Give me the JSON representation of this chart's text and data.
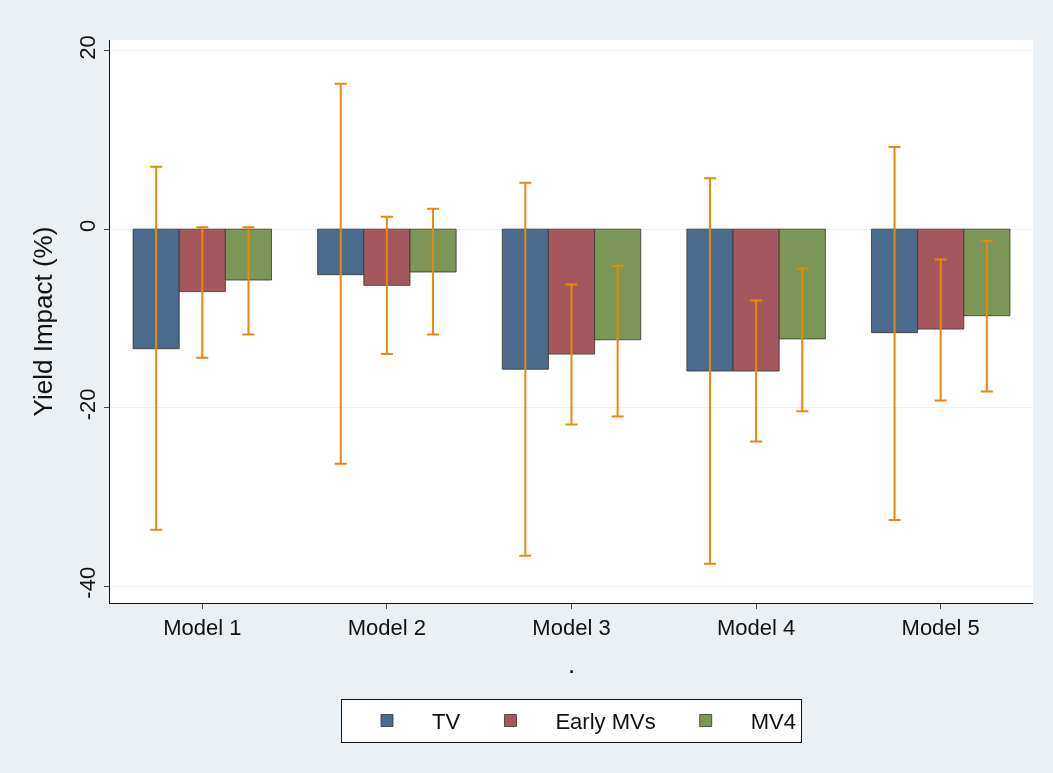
{
  "chart_data": {
    "type": "bar",
    "xlabel": ".",
    "ylabel": "Yield Impact (%)",
    "categories": [
      "Model 1",
      "Model 2",
      "Model 3",
      "Model 4",
      "Model 5"
    ],
    "series": [
      {
        "name": "TV",
        "color": "#4a6b8b",
        "values": [
          -13.4,
          -5.1,
          -15.7,
          -15.9,
          -11.6
        ],
        "errors": [
          [
            -33.7,
            7.0
          ],
          [
            -26.3,
            16.3
          ],
          [
            -36.6,
            5.2
          ],
          [
            -37.5,
            5.7
          ],
          [
            -32.6,
            9.2
          ]
        ]
      },
      {
        "name": "Early MVs",
        "color": "#a5575e",
        "values": [
          -7.0,
          -6.3,
          -14.0,
          -15.9,
          -11.2
        ],
        "errors": [
          [
            -14.4,
            0.2
          ],
          [
            -14.0,
            1.4
          ],
          [
            -21.9,
            -6.2
          ],
          [
            -23.8,
            -8.0
          ],
          [
            -19.2,
            -3.4
          ]
        ]
      },
      {
        "name": "MV4",
        "color": "#7b9656",
        "values": [
          -5.7,
          -4.8,
          -12.4,
          -12.3,
          -9.7
        ],
        "errors": [
          [
            -11.8,
            0.2
          ],
          [
            -11.8,
            2.3
          ],
          [
            -21.0,
            -4.1
          ],
          [
            -20.4,
            -4.4
          ],
          [
            -18.2,
            -1.3
          ]
        ]
      }
    ],
    "ylim": [
      -41.9,
      21.2
    ],
    "yticks": [
      -40,
      -20,
      0,
      20
    ],
    "grid": "y",
    "legend": "bottom"
  }
}
